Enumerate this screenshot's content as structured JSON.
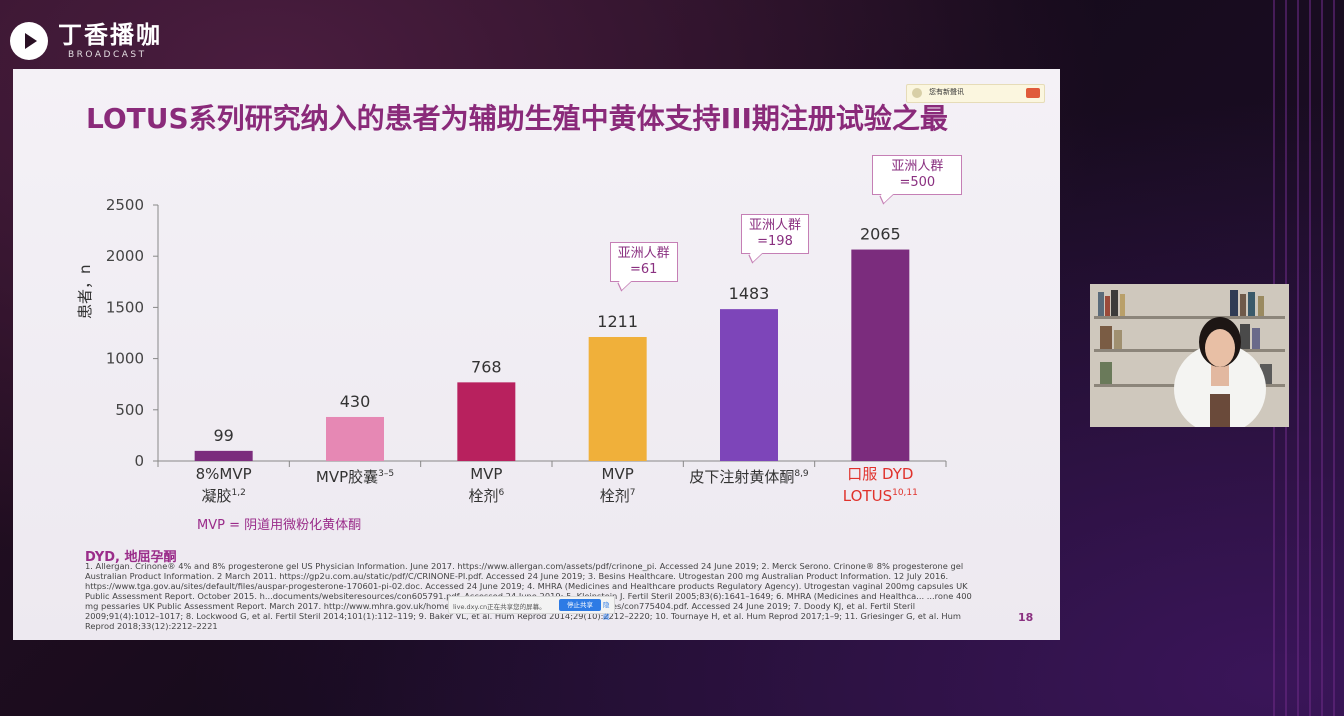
{
  "app": {
    "brand_name": "丁香播咖",
    "brand_sub": "BROADCAST"
  },
  "notification": {
    "text": "您有新聲讯"
  },
  "slide": {
    "title": "LOTUS系列研究纳入的患者为辅助生殖中黄体支持III期注册试验之最",
    "page_number": "18",
    "mvp_definition": "MVP = 阴道用微粉化黄体酮",
    "dyd_definition": "DYD, 地屈孕酮",
    "references": "1. Allergan. Crinone® 4% and 8% progesterone gel US Physician Information. June 2017. https://www.allergan.com/assets/pdf/crinone_pi. Accessed 24 June 2019; 2. Merck Serono. Crinone® 8% progesterone gel Australian Product Information. 2 March 2011. https://gp2u.com.au/static/pdf/C/CRINONE-PI.pdf. Accessed 24 June 2019; 3. Besins Healthcare. Utrogestan 200 mg Australian Product Information. 12 July 2016. https://www.tga.gov.au/sites/default/files/auspar-progesterone-170601-pi-02.doc. Accessed 24 June 2019; 4. MHRA (Medicines and Healthcare products Regulatory Agency). Utrogestan vaginal 200mg capsules UK Public Assessment Report. October 2015. h...documents/websiteresources/con605791.pdf. Accessed 24 June 2019; 5. Kleinstein J. Fertil Steril 2005;83(6):1641–1649; 6. MHRA (Medicines and Healthca... ...rone 400 mg pessaries UK Public Assessment Report. March 2017. http://www.mhra.gov.uk/home/groups/par/documents/websiteresources/con775404.pdf. Accessed 24 June 2019; 7. Doody KJ, et al. Fertil Steril 2009;91(4):1012–1017; 8. Lockwood G, et al. Fertil Steril 2014;101(1):112–119; 9. Baker VL, et al. Hum Reprod 2014;29(10):2212–2220; 10. Tournaye H, et al. Hum Reprod 2017;1–9; 11. Griesinger G, et al. Hum Reprod 2018;33(12):2212–2221"
  },
  "share_bar": {
    "text": "live.dxy.cn正在共享您的屏幕。",
    "stop_label": "停止共享",
    "hide_label": "隐藏"
  },
  "chart_data": {
    "type": "bar",
    "ylabel": "患者，n",
    "ylim": [
      0,
      2500
    ],
    "yticks": [
      "0",
      "500",
      "1000",
      "1500",
      "2000",
      "2500"
    ],
    "categories": [
      {
        "line1": "8%MVP",
        "line2": "凝胶",
        "sup": "1,2"
      },
      {
        "line1": "MVP胶囊",
        "line2": "",
        "sup": "3–5"
      },
      {
        "line1": "MVP",
        "line2": "栓剂",
        "sup": "6"
      },
      {
        "line1": "MVP",
        "line2": "栓剂",
        "sup": "7"
      },
      {
        "line1": "皮下注射黄体酮",
        "line2": "",
        "sup": "8,9"
      },
      {
        "line1": "口服 DYD",
        "line2": "LOTUS",
        "sup": "10,11"
      }
    ],
    "values": [
      99,
      430,
      768,
      1211,
      1483,
      2065
    ],
    "value_labels": [
      "99",
      "430",
      "768",
      "1211",
      "1483",
      "2065"
    ],
    "colors": [
      "#7b2c7d",
      "#e688b4",
      "#b8215e",
      "#f0b03a",
      "#7d45b9",
      "#7b2c7d"
    ],
    "callouts": [
      {
        "bar_index": 3,
        "text": "亚洲人群=61"
      },
      {
        "bar_index": 4,
        "text": "亚洲人群=198"
      },
      {
        "bar_index": 5,
        "text": "亚洲人群=500"
      }
    ]
  }
}
